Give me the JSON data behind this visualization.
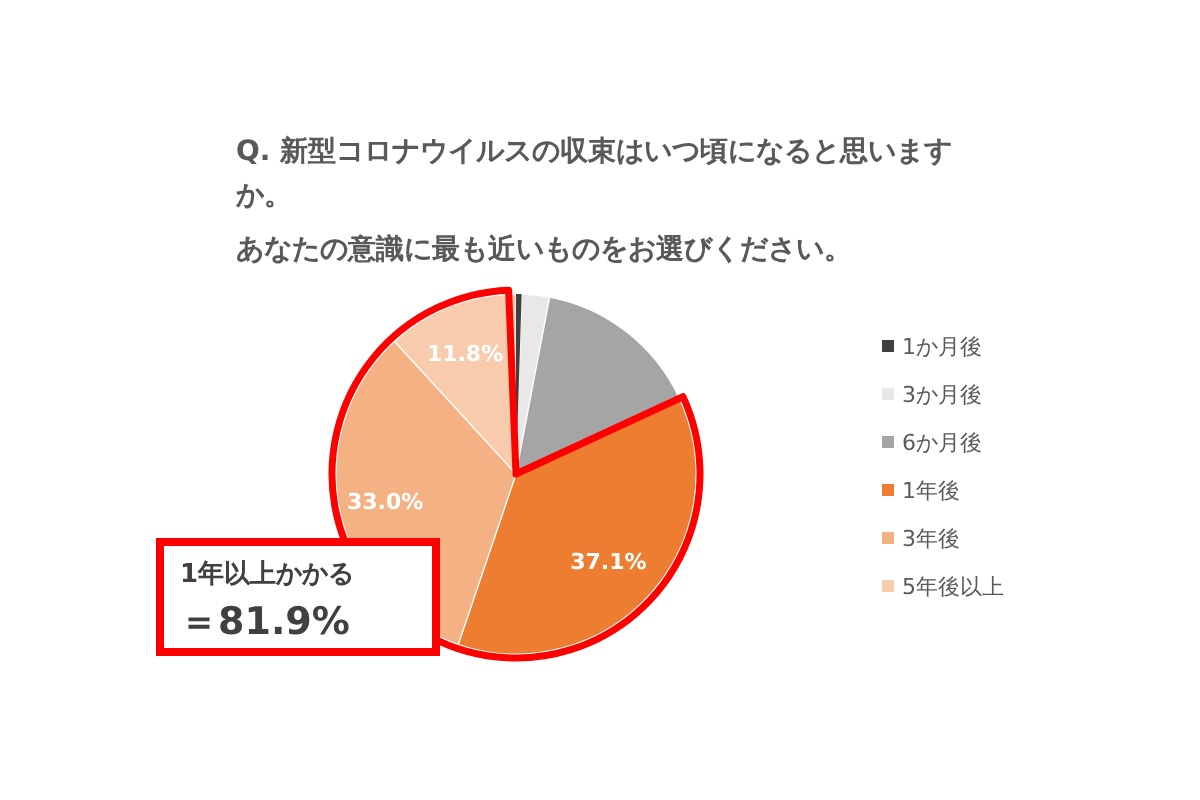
{
  "chart_data": {
    "type": "pie",
    "title": "Q. 新型コロナウイルスの収束はいつ頃になると思いますか。",
    "subtitle": "あなたの意識に最も近いものをお選びください。",
    "categories": [
      "1か月後",
      "3か月後",
      "6か月後",
      "1年後",
      "3年後",
      "5年後以上"
    ],
    "values": [
      0.5,
      2.5,
      15.1,
      37.1,
      33.0,
      11.8
    ],
    "colors": [
      "#404040",
      "#e8e8e8",
      "#a5a5a5",
      "#ed7d31",
      "#f4b183",
      "#f8cbad"
    ],
    "value_labels": [
      null,
      null,
      null,
      "37.1%",
      "33.0%",
      "11.8%"
    ],
    "annotations": [
      "1年以上かかる",
      "＝81.9%"
    ],
    "legend": "right"
  }
}
